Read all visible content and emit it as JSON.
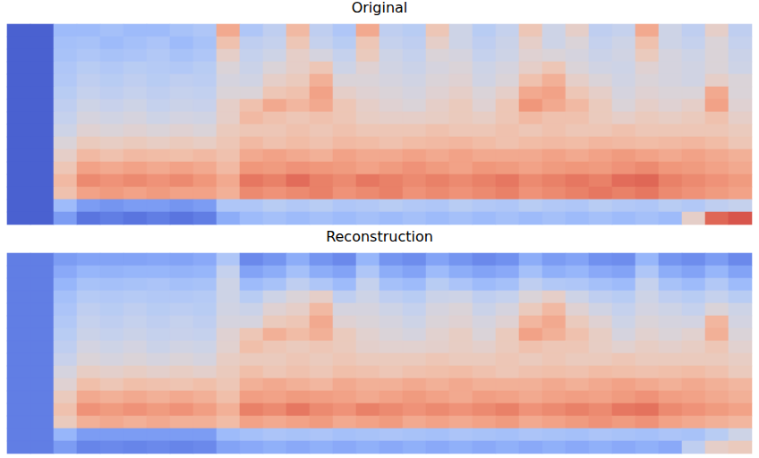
{
  "chart_data": [
    {
      "type": "heatmap",
      "title": "Original",
      "tick_labels": false,
      "zlim": [
        0,
        1
      ],
      "cells": [
        [
          0.05,
          0.05,
          0.3,
          0.3,
          0.32,
          0.3,
          0.3,
          0.33,
          0.35,
          0.7,
          0.35,
          0.4,
          0.65,
          0.4,
          0.35,
          0.7,
          0.4,
          0.38,
          0.6,
          0.45,
          0.38,
          0.42,
          0.6,
          0.45,
          0.55,
          0.4,
          0.42,
          0.7,
          0.45,
          0.4,
          0.55,
          0.4
        ],
        [
          0.05,
          0.05,
          0.32,
          0.33,
          0.3,
          0.32,
          0.34,
          0.3,
          0.33,
          0.62,
          0.4,
          0.42,
          0.6,
          0.42,
          0.38,
          0.6,
          0.42,
          0.4,
          0.55,
          0.45,
          0.4,
          0.44,
          0.55,
          0.45,
          0.5,
          0.42,
          0.45,
          0.62,
          0.45,
          0.42,
          0.5,
          0.42
        ],
        [
          0.05,
          0.05,
          0.33,
          0.35,
          0.33,
          0.34,
          0.36,
          0.33,
          0.35,
          0.55,
          0.42,
          0.45,
          0.55,
          0.48,
          0.42,
          0.58,
          0.45,
          0.42,
          0.5,
          0.48,
          0.42,
          0.45,
          0.52,
          0.5,
          0.48,
          0.44,
          0.46,
          0.58,
          0.48,
          0.45,
          0.5,
          0.44
        ],
        [
          0.05,
          0.05,
          0.35,
          0.38,
          0.36,
          0.38,
          0.37,
          0.36,
          0.38,
          0.5,
          0.44,
          0.5,
          0.55,
          0.6,
          0.45,
          0.52,
          0.46,
          0.44,
          0.48,
          0.5,
          0.45,
          0.48,
          0.55,
          0.6,
          0.5,
          0.46,
          0.45,
          0.52,
          0.48,
          0.46,
          0.5,
          0.45
        ],
        [
          0.05,
          0.05,
          0.36,
          0.4,
          0.38,
          0.4,
          0.38,
          0.4,
          0.39,
          0.48,
          0.46,
          0.55,
          0.58,
          0.68,
          0.5,
          0.5,
          0.48,
          0.46,
          0.5,
          0.52,
          0.46,
          0.5,
          0.62,
          0.68,
          0.55,
          0.5,
          0.46,
          0.5,
          0.48,
          0.46,
          0.55,
          0.5
        ],
        [
          0.05,
          0.05,
          0.38,
          0.42,
          0.4,
          0.42,
          0.4,
          0.42,
          0.41,
          0.5,
          0.5,
          0.6,
          0.62,
          0.72,
          0.55,
          0.52,
          0.5,
          0.48,
          0.52,
          0.55,
          0.5,
          0.55,
          0.7,
          0.72,
          0.6,
          0.55,
          0.48,
          0.52,
          0.5,
          0.5,
          0.7,
          0.5
        ],
        [
          0.05,
          0.05,
          0.4,
          0.45,
          0.43,
          0.45,
          0.42,
          0.44,
          0.43,
          0.55,
          0.62,
          0.7,
          0.66,
          0.7,
          0.6,
          0.55,
          0.52,
          0.5,
          0.55,
          0.58,
          0.52,
          0.6,
          0.75,
          0.7,
          0.65,
          0.58,
          0.5,
          0.55,
          0.52,
          0.55,
          0.72,
          0.52
        ],
        [
          0.05,
          0.05,
          0.42,
          0.48,
          0.46,
          0.48,
          0.45,
          0.47,
          0.46,
          0.55,
          0.65,
          0.62,
          0.6,
          0.62,
          0.6,
          0.56,
          0.55,
          0.55,
          0.56,
          0.58,
          0.56,
          0.6,
          0.65,
          0.62,
          0.62,
          0.58,
          0.55,
          0.58,
          0.56,
          0.58,
          0.62,
          0.55
        ],
        [
          0.05,
          0.05,
          0.45,
          0.52,
          0.5,
          0.52,
          0.5,
          0.52,
          0.5,
          0.58,
          0.6,
          0.6,
          0.62,
          0.6,
          0.62,
          0.6,
          0.6,
          0.6,
          0.62,
          0.6,
          0.6,
          0.62,
          0.6,
          0.62,
          0.6,
          0.6,
          0.62,
          0.6,
          0.6,
          0.6,
          0.6,
          0.58
        ],
        [
          0.05,
          0.05,
          0.5,
          0.58,
          0.56,
          0.58,
          0.56,
          0.58,
          0.56,
          0.6,
          0.65,
          0.62,
          0.64,
          0.62,
          0.65,
          0.64,
          0.62,
          0.64,
          0.65,
          0.66,
          0.64,
          0.62,
          0.64,
          0.65,
          0.64,
          0.66,
          0.65,
          0.64,
          0.65,
          0.66,
          0.64,
          0.6
        ],
        [
          0.05,
          0.05,
          0.55,
          0.65,
          0.62,
          0.65,
          0.64,
          0.63,
          0.65,
          0.62,
          0.7,
          0.72,
          0.7,
          0.68,
          0.72,
          0.7,
          0.7,
          0.72,
          0.7,
          0.72,
          0.7,
          0.7,
          0.7,
          0.72,
          0.7,
          0.72,
          0.74,
          0.72,
          0.7,
          0.72,
          0.7,
          0.68
        ],
        [
          0.05,
          0.05,
          0.6,
          0.72,
          0.7,
          0.72,
          0.7,
          0.72,
          0.7,
          0.65,
          0.75,
          0.74,
          0.76,
          0.75,
          0.74,
          0.72,
          0.74,
          0.76,
          0.74,
          0.72,
          0.75,
          0.74,
          0.72,
          0.74,
          0.75,
          0.74,
          0.76,
          0.78,
          0.75,
          0.74,
          0.72,
          0.7
        ],
        [
          0.05,
          0.05,
          0.65,
          0.78,
          0.76,
          0.78,
          0.76,
          0.78,
          0.75,
          0.7,
          0.82,
          0.8,
          0.84,
          0.8,
          0.78,
          0.82,
          0.8,
          0.78,
          0.8,
          0.78,
          0.8,
          0.82,
          0.78,
          0.8,
          0.82,
          0.8,
          0.84,
          0.85,
          0.8,
          0.78,
          0.76,
          0.74
        ],
        [
          0.05,
          0.05,
          0.62,
          0.72,
          0.74,
          0.72,
          0.74,
          0.72,
          0.72,
          0.68,
          0.78,
          0.76,
          0.78,
          0.8,
          0.76,
          0.78,
          0.8,
          0.76,
          0.78,
          0.76,
          0.78,
          0.8,
          0.76,
          0.78,
          0.8,
          0.82,
          0.8,
          0.82,
          0.78,
          0.76,
          0.74,
          0.72
        ],
        [
          0.05,
          0.05,
          0.3,
          0.2,
          0.18,
          0.2,
          0.2,
          0.18,
          0.2,
          0.35,
          0.35,
          0.38,
          0.36,
          0.38,
          0.35,
          0.36,
          0.38,
          0.36,
          0.35,
          0.38,
          0.36,
          0.35,
          0.38,
          0.36,
          0.35,
          0.38,
          0.36,
          0.35,
          0.38,
          0.36,
          0.4,
          0.42
        ],
        [
          0.05,
          0.05,
          0.2,
          0.1,
          0.12,
          0.1,
          0.12,
          0.1,
          0.12,
          0.25,
          0.3,
          0.32,
          0.3,
          0.32,
          0.3,
          0.32,
          0.3,
          0.32,
          0.3,
          0.32,
          0.3,
          0.32,
          0.3,
          0.32,
          0.3,
          0.32,
          0.3,
          0.32,
          0.3,
          0.55,
          0.85,
          0.88
        ]
      ]
    },
    {
      "type": "heatmap",
      "title": "Reconstruction",
      "tick_labels": false,
      "zlim": [
        0,
        1
      ],
      "cells": [
        [
          0.12,
          0.12,
          0.2,
          0.22,
          0.22,
          0.22,
          0.23,
          0.22,
          0.24,
          0.35,
          0.15,
          0.18,
          0.25,
          0.18,
          0.15,
          0.28,
          0.18,
          0.16,
          0.22,
          0.18,
          0.15,
          0.17,
          0.25,
          0.2,
          0.22,
          0.17,
          0.16,
          0.28,
          0.18,
          0.16,
          0.2,
          0.15
        ],
        [
          0.12,
          0.12,
          0.24,
          0.28,
          0.27,
          0.28,
          0.28,
          0.27,
          0.28,
          0.42,
          0.22,
          0.25,
          0.32,
          0.25,
          0.22,
          0.35,
          0.25,
          0.22,
          0.3,
          0.25,
          0.22,
          0.24,
          0.32,
          0.26,
          0.28,
          0.24,
          0.22,
          0.35,
          0.25,
          0.22,
          0.28,
          0.22
        ],
        [
          0.12,
          0.12,
          0.28,
          0.33,
          0.32,
          0.33,
          0.34,
          0.32,
          0.33,
          0.45,
          0.3,
          0.33,
          0.4,
          0.35,
          0.3,
          0.42,
          0.32,
          0.3,
          0.38,
          0.34,
          0.3,
          0.32,
          0.4,
          0.36,
          0.35,
          0.32,
          0.3,
          0.42,
          0.33,
          0.3,
          0.36,
          0.3
        ],
        [
          0.12,
          0.12,
          0.32,
          0.37,
          0.36,
          0.37,
          0.36,
          0.36,
          0.37,
          0.45,
          0.38,
          0.45,
          0.5,
          0.55,
          0.4,
          0.45,
          0.4,
          0.38,
          0.44,
          0.45,
          0.4,
          0.42,
          0.5,
          0.55,
          0.45,
          0.4,
          0.38,
          0.45,
          0.4,
          0.38,
          0.42,
          0.38
        ],
        [
          0.12,
          0.12,
          0.34,
          0.4,
          0.38,
          0.4,
          0.38,
          0.39,
          0.38,
          0.46,
          0.44,
          0.52,
          0.55,
          0.65,
          0.48,
          0.48,
          0.45,
          0.42,
          0.48,
          0.5,
          0.44,
          0.48,
          0.58,
          0.65,
          0.52,
          0.46,
          0.42,
          0.47,
          0.45,
          0.42,
          0.5,
          0.45
        ],
        [
          0.12,
          0.12,
          0.36,
          0.42,
          0.4,
          0.42,
          0.4,
          0.42,
          0.4,
          0.48,
          0.48,
          0.58,
          0.6,
          0.7,
          0.52,
          0.5,
          0.48,
          0.45,
          0.5,
          0.52,
          0.48,
          0.52,
          0.66,
          0.7,
          0.58,
          0.52,
          0.45,
          0.5,
          0.48,
          0.47,
          0.66,
          0.47
        ],
        [
          0.12,
          0.12,
          0.38,
          0.44,
          0.42,
          0.44,
          0.42,
          0.43,
          0.42,
          0.52,
          0.6,
          0.68,
          0.64,
          0.68,
          0.58,
          0.53,
          0.5,
          0.48,
          0.53,
          0.56,
          0.5,
          0.58,
          0.72,
          0.68,
          0.62,
          0.56,
          0.48,
          0.53,
          0.5,
          0.53,
          0.68,
          0.5
        ],
        [
          0.12,
          0.12,
          0.4,
          0.47,
          0.45,
          0.47,
          0.44,
          0.46,
          0.45,
          0.53,
          0.63,
          0.6,
          0.58,
          0.6,
          0.58,
          0.54,
          0.53,
          0.53,
          0.54,
          0.56,
          0.54,
          0.58,
          0.62,
          0.6,
          0.6,
          0.56,
          0.53,
          0.56,
          0.54,
          0.56,
          0.6,
          0.53
        ],
        [
          0.12,
          0.12,
          0.43,
          0.5,
          0.48,
          0.5,
          0.48,
          0.5,
          0.48,
          0.56,
          0.58,
          0.58,
          0.6,
          0.58,
          0.6,
          0.58,
          0.58,
          0.58,
          0.6,
          0.58,
          0.58,
          0.6,
          0.58,
          0.6,
          0.58,
          0.58,
          0.6,
          0.58,
          0.58,
          0.58,
          0.58,
          0.56
        ],
        [
          0.12,
          0.12,
          0.48,
          0.56,
          0.54,
          0.56,
          0.54,
          0.56,
          0.54,
          0.58,
          0.63,
          0.6,
          0.62,
          0.6,
          0.63,
          0.62,
          0.6,
          0.62,
          0.63,
          0.64,
          0.62,
          0.6,
          0.62,
          0.63,
          0.62,
          0.64,
          0.63,
          0.62,
          0.63,
          0.64,
          0.62,
          0.58
        ],
        [
          0.12,
          0.12,
          0.52,
          0.63,
          0.6,
          0.63,
          0.62,
          0.61,
          0.63,
          0.6,
          0.68,
          0.7,
          0.68,
          0.66,
          0.7,
          0.68,
          0.68,
          0.7,
          0.68,
          0.7,
          0.68,
          0.68,
          0.68,
          0.7,
          0.68,
          0.7,
          0.72,
          0.7,
          0.68,
          0.7,
          0.68,
          0.66
        ],
        [
          0.12,
          0.12,
          0.58,
          0.7,
          0.68,
          0.7,
          0.68,
          0.7,
          0.68,
          0.63,
          0.73,
          0.72,
          0.74,
          0.73,
          0.72,
          0.7,
          0.72,
          0.74,
          0.72,
          0.7,
          0.73,
          0.72,
          0.7,
          0.72,
          0.73,
          0.72,
          0.74,
          0.76,
          0.73,
          0.72,
          0.7,
          0.68
        ],
        [
          0.12,
          0.12,
          0.62,
          0.76,
          0.74,
          0.76,
          0.74,
          0.76,
          0.73,
          0.68,
          0.8,
          0.78,
          0.82,
          0.78,
          0.76,
          0.8,
          0.78,
          0.76,
          0.78,
          0.76,
          0.78,
          0.8,
          0.76,
          0.78,
          0.8,
          0.78,
          0.82,
          0.83,
          0.78,
          0.76,
          0.74,
          0.72
        ],
        [
          0.12,
          0.12,
          0.58,
          0.68,
          0.7,
          0.68,
          0.7,
          0.68,
          0.68,
          0.64,
          0.72,
          0.7,
          0.72,
          0.74,
          0.7,
          0.72,
          0.74,
          0.7,
          0.72,
          0.7,
          0.72,
          0.74,
          0.7,
          0.72,
          0.74,
          0.76,
          0.74,
          0.76,
          0.72,
          0.7,
          0.68,
          0.66
        ],
        [
          0.12,
          0.12,
          0.28,
          0.2,
          0.2,
          0.2,
          0.2,
          0.2,
          0.2,
          0.3,
          0.32,
          0.34,
          0.33,
          0.34,
          0.32,
          0.33,
          0.34,
          0.33,
          0.32,
          0.34,
          0.33,
          0.32,
          0.34,
          0.33,
          0.32,
          0.34,
          0.33,
          0.32,
          0.34,
          0.33,
          0.38,
          0.45
        ],
        [
          0.12,
          0.12,
          0.2,
          0.14,
          0.15,
          0.14,
          0.15,
          0.14,
          0.15,
          0.22,
          0.24,
          0.26,
          0.24,
          0.26,
          0.24,
          0.26,
          0.24,
          0.26,
          0.24,
          0.26,
          0.24,
          0.26,
          0.24,
          0.26,
          0.24,
          0.26,
          0.24,
          0.26,
          0.24,
          0.4,
          0.55,
          0.58
        ]
      ]
    }
  ]
}
